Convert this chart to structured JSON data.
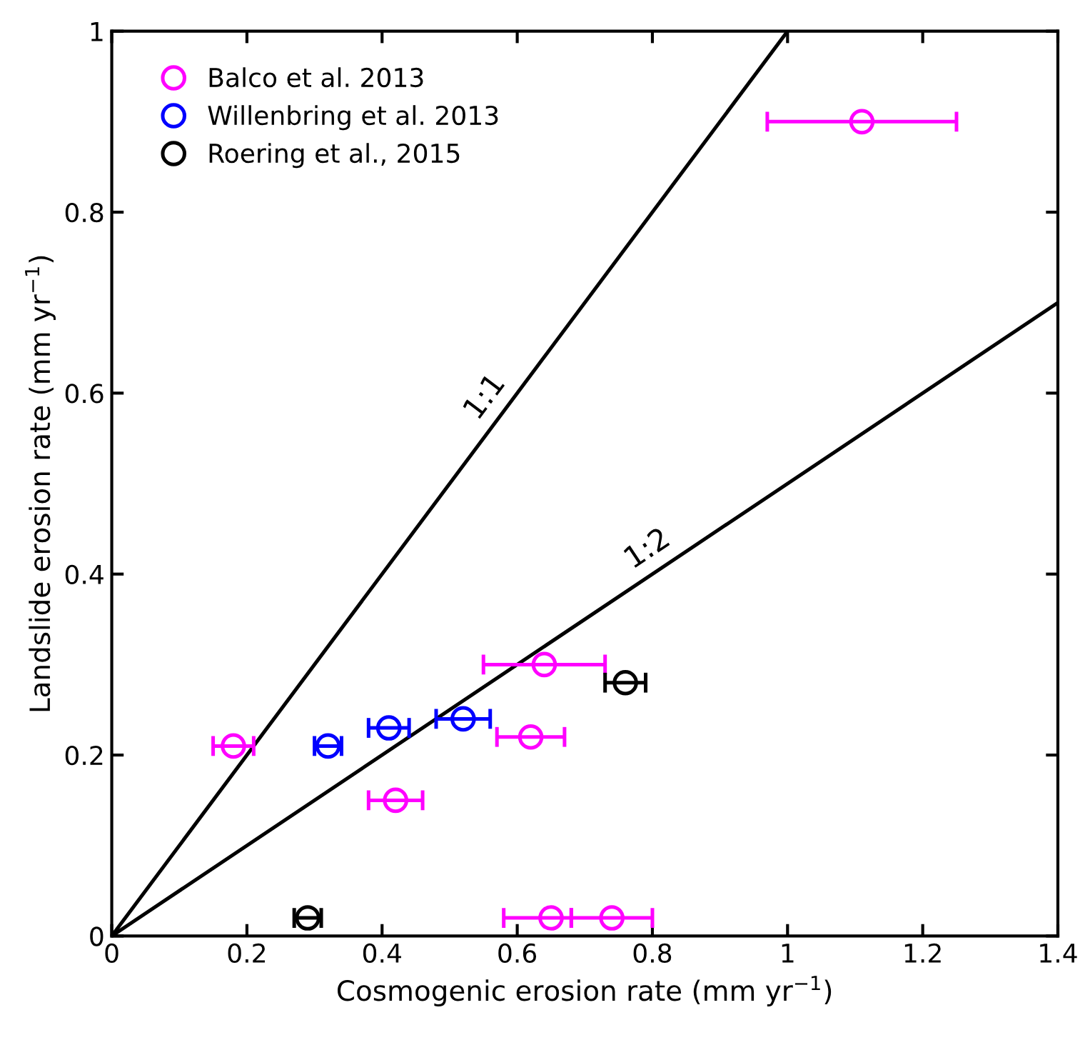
{
  "chart_data": {
    "type": "scatter",
    "xlabel": "Cosmogenic erosion rate (mm yr$^{−1}$)",
    "ylabel": "Landslide erosion rate (mm yr$^{−1}$)",
    "xlim": [
      0,
      1.4
    ],
    "ylim": [
      0,
      1
    ],
    "xticks": [
      0,
      0.2,
      0.4,
      0.6,
      0.8,
      1,
      1.2,
      1.4
    ],
    "yticks": [
      0,
      0.2,
      0.4,
      0.6,
      0.8,
      1
    ],
    "grid": false,
    "legend": "top left",
    "marker": "circle",
    "series": [
      {
        "name": "Balco et al. 2013",
        "color": "#ff00ff",
        "x": [
          1.11,
          0.64,
          0.62,
          0.18,
          0.42,
          0.65,
          0.74
        ],
        "values": [
          0.9,
          0.3,
          0.22,
          0.21,
          0.15,
          0.02,
          0.02
        ],
        "xerrors": [
          [
            0.97,
            1.25
          ],
          [
            0.55,
            0.73
          ],
          [
            0.57,
            0.67
          ],
          [
            0.15,
            0.21
          ],
          [
            0.38,
            0.46
          ],
          [
            0.58,
            0.68
          ],
          [
            0.68,
            0.8
          ]
        ]
      },
      {
        "name": "Willenbring et al. 2013",
        "color": "#0000ff",
        "x": [
          0.32,
          0.41,
          0.52
        ],
        "values": [
          0.21,
          0.23,
          0.24
        ],
        "xerrors": [
          [
            0.3,
            0.34
          ],
          [
            0.38,
            0.44
          ],
          [
            0.48,
            0.56
          ]
        ]
      },
      {
        "name": "Roering et al., 2015",
        "color": "#000000",
        "x": [
          0.76,
          0.29
        ],
        "values": [
          0.28,
          0.02
        ],
        "xerrors": [
          [
            0.73,
            0.79
          ],
          [
            0.27,
            0.31
          ]
        ]
      },
      {
        "type": "line",
        "color": "#000000",
        "marker": "none",
        "x": [
          0,
          1
        ],
        "values": [
          0,
          1
        ]
      },
      {
        "type": "line",
        "color": "#000000",
        "marker": "none",
        "x": [
          0,
          1.4
        ],
        "values": [
          0,
          0.7
        ]
      }
    ],
    "annotations": [
      "1:1",
      "1:2"
    ]
  }
}
